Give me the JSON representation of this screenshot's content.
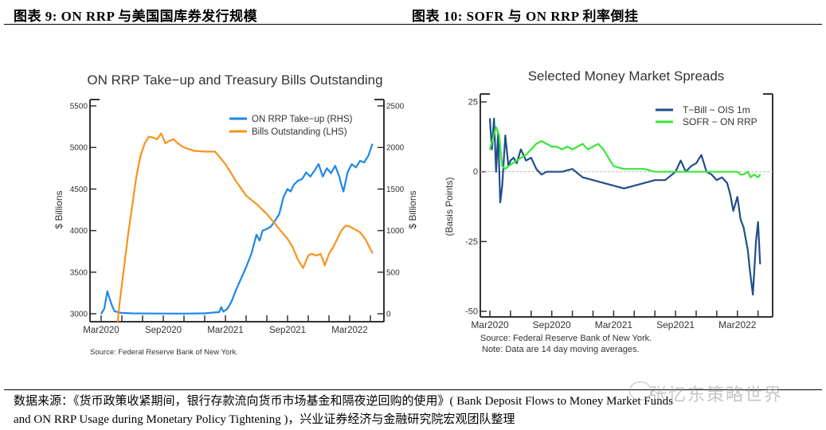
{
  "header": {
    "left_title": "图表 9:  ON RRP 与美国国库券发行规模",
    "right_title": "图表 10:  SOFR 与 ON RRP 利率倒挂"
  },
  "footer": {
    "line1": "数据来源：《货币政策收紧期间，银行存款流向货币市场基金和隔夜逆回购的使用》( Bank Deposit Flows to Money Market Funds",
    "line2": "and ON RRP Usage during Monetary Policy Tightening )，兴业证券经济与金融研究院宏观团队整理",
    "watermark": "张忆东策略世界"
  },
  "chart_data": [
    {
      "type": "line",
      "title": "ON RRP Take−up and Treasury Bills Outstanding",
      "ylabel": "$ Billions",
      "y2label": "$ Billions",
      "ylim": [
        3000,
        5500
      ],
      "y2lim": [
        0,
        2500
      ],
      "yticks": [
        "3000",
        "3500",
        "4000",
        "4500",
        "5000",
        "5500"
      ],
      "y2ticks": [
        "0",
        "500",
        "1000",
        "1500",
        "2000",
        "2500"
      ],
      "xticklabels": [
        "Mar2020",
        "Sep2020",
        "Mar2021",
        "Sep2021",
        "Mar2022"
      ],
      "x_unit": "months since Mar2020",
      "source": "Source: Federal Reserve Bank of New York.",
      "legend": "top-right",
      "series": [
        {
          "name": "ON RRP Take−up (RHS)",
          "axis": "right",
          "color": "#1e88e5",
          "x": [
            0,
            0.3,
            0.6,
            0.9,
            1.1,
            1.3,
            1.6,
            2,
            3,
            5,
            8,
            10,
            11.4,
            11.6,
            11.8,
            12.2,
            12.6,
            13,
            13.5,
            14,
            14.5,
            15,
            15.3,
            15.6,
            16,
            16.4,
            16.8,
            17.2,
            17.6,
            18,
            18.3,
            18.6,
            19,
            19.4,
            19.8,
            20.2,
            20.6,
            21,
            21.4,
            21.8,
            22.2,
            22.6,
            23,
            23.2,
            23.4,
            23.8,
            24.2,
            24.6,
            25,
            25.4,
            25.8,
            26.2
          ],
          "y": [
            0,
            60,
            270,
            150,
            80,
            30,
            20,
            10,
            5,
            3,
            2,
            5,
            20,
            80,
            25,
            60,
            150,
            280,
            420,
            560,
            720,
            950,
            880,
            1000,
            1020,
            1050,
            1120,
            1200,
            1400,
            1500,
            1470,
            1550,
            1600,
            1620,
            1700,
            1650,
            1720,
            1800,
            1650,
            1750,
            1690,
            1780,
            1650,
            1550,
            1470,
            1700,
            1800,
            1760,
            1840,
            1820,
            1900,
            2040
          ]
        },
        {
          "name": "Bills Outstanding (LHS)",
          "axis": "left",
          "color": "#f7931e",
          "x": [
            1.6,
            1.8,
            2.2,
            2.6,
            3,
            3.4,
            3.8,
            4.2,
            4.6,
            5,
            5.4,
            5.8,
            6.2,
            6.6,
            7,
            7.4,
            8,
            9,
            10,
            11,
            12,
            13,
            14,
            15,
            16,
            17,
            18,
            18.5,
            19,
            19.5,
            20,
            20.3,
            20.8,
            21.2,
            21.6,
            22,
            22.4,
            22.8,
            23.2,
            23.6,
            24,
            25,
            25.5,
            26.2
          ],
          "y": [
            2900,
            3150,
            3550,
            3950,
            4300,
            4650,
            4900,
            5050,
            5130,
            5120,
            5100,
            5170,
            5050,
            5080,
            5100,
            5050,
            5000,
            4960,
            4950,
            4950,
            4800,
            4600,
            4420,
            4320,
            4200,
            4050,
            3900,
            3800,
            3650,
            3550,
            3700,
            3720,
            3700,
            3720,
            3580,
            3720,
            3800,
            3900,
            4000,
            4060,
            4050,
            3980,
            3900,
            3730
          ]
        }
      ]
    },
    {
      "type": "line",
      "title": "Selected Money Market Spreads",
      "ylabel": "(Basis Points)",
      "ylim": [
        -50,
        25
      ],
      "yticks": [
        "-50",
        "-25",
        "0",
        "25"
      ],
      "xticklabels": [
        "Mar2020",
        "Sep2020",
        "Mar2021",
        "Sep2021",
        "Mar2022"
      ],
      "x_unit": "months since Mar2020",
      "source": "Source: Federal Reserve Bank of New York.",
      "note": "Note: Data are 14 day moving averages.",
      "legend": "top-right",
      "series": [
        {
          "name": "T−Bill − OIS 1m",
          "color": "#1f4e8c",
          "x": [
            0,
            0.2,
            0.4,
            0.6,
            0.8,
            1,
            1.2,
            1.5,
            1.8,
            2,
            2.3,
            2.6,
            3,
            3.5,
            4,
            4.5,
            5,
            5.5,
            6,
            7,
            8,
            9,
            10,
            11,
            12,
            13,
            14,
            15,
            16,
            17,
            18,
            18.5,
            19,
            19.5,
            20,
            20.5,
            21,
            21.5,
            22,
            22.5,
            23,
            23.3,
            23.6,
            24,
            24.3,
            24.6,
            25,
            25.2,
            25.5,
            25.8,
            26,
            26.2
          ],
          "y": [
            19,
            8,
            19,
            0,
            14,
            -11,
            -5,
            13,
            2,
            4,
            5,
            3,
            8,
            4,
            5,
            1,
            -1,
            0,
            0,
            0,
            1,
            -2,
            -3,
            -4,
            -5,
            -6,
            -5,
            -4,
            -3,
            -3,
            0,
            4,
            0,
            2,
            3,
            6,
            0,
            -1,
            -3,
            -2,
            -4,
            -8,
            -14,
            -9,
            -17,
            -20,
            -28,
            -35,
            -44,
            -25,
            -18,
            -33
          ]
        },
        {
          "name": "SOFR − ON RRP",
          "color": "#39e639",
          "x": [
            0,
            0.3,
            0.6,
            0.9,
            1.2,
            1.5,
            1.8,
            2.2,
            2.6,
            3,
            3.5,
            4,
            4.5,
            5,
            5.5,
            6,
            6.5,
            7,
            7.5,
            8,
            8.5,
            9,
            9.5,
            10,
            10.5,
            11,
            11.5,
            12,
            13,
            14,
            15,
            16,
            17,
            18,
            19,
            20,
            21,
            22,
            23,
            23.5,
            24,
            24.3,
            24.6,
            25,
            25.3,
            25.6,
            26,
            26.2
          ],
          "y": [
            8,
            12,
            16,
            13,
            2,
            1,
            2,
            3,
            4,
            5,
            6,
            8,
            10,
            11,
            10,
            9,
            9,
            8,
            9,
            8,
            9,
            10,
            8,
            9,
            10,
            8,
            5,
            2,
            1,
            1,
            1,
            0,
            0,
            0,
            0,
            0,
            0,
            0,
            0,
            0,
            0,
            -1,
            -1,
            0,
            -2,
            -1,
            -2,
            -1
          ]
        }
      ]
    }
  ]
}
